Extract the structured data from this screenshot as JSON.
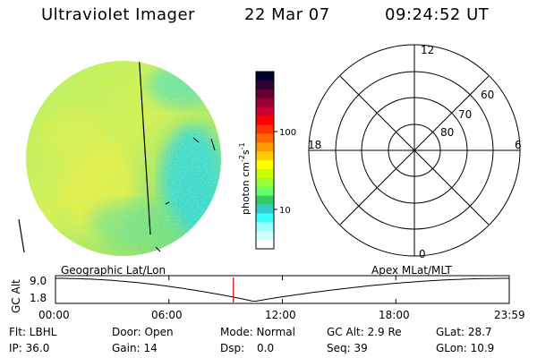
{
  "header": {
    "instrument": "Ultraviolet Imager",
    "date": "22 Mar 07",
    "time": "09:24:52 UT"
  },
  "colorbar": {
    "unit_label": "photon cm",
    "unit_exp1": "-2",
    "unit_mid": "s",
    "unit_exp2": "-1",
    "tick_100": "100",
    "tick_10": "10",
    "colors": [
      "#000033",
      "#330033",
      "#660033",
      "#990033",
      "#cc0033",
      "#ff0000",
      "#ff3300",
      "#ff6600",
      "#ff9900",
      "#ffcc00",
      "#ffff00",
      "#ccff00",
      "#99ff33",
      "#66ff66",
      "#33cc66",
      "#33cccc",
      "#33ffff",
      "#99ffff",
      "#ccffff",
      "#ffffff"
    ]
  },
  "polar": {
    "top_label": "12",
    "left_label": "18",
    "right_label": "6",
    "bottom_label": "0",
    "lat_60": "60",
    "lat_70": "70",
    "lat_80": "80"
  },
  "timeline": {
    "left_title": "Geographic Lat/Lon",
    "right_title": "Apex MLat/MLT",
    "y_axis_label": "GC Alt",
    "y_top": "9.0",
    "y_bottom": "1.8",
    "x_ticks": [
      "00:00",
      "06:00",
      "12:00",
      "18:00",
      "23:59"
    ],
    "current_marker_hour": 9.41
  },
  "footer": {
    "row1": [
      "Flt: LBHL",
      "Door: Open",
      "Mode: Normal",
      "GC Alt: 2.9 Re",
      "GLat: 28.7"
    ],
    "row2": [
      "IP: 36.0",
      "Gain: 14",
      "Dsp:",
      "0.0",
      "Seq: 39",
      "GLon: 10.9"
    ]
  }
}
